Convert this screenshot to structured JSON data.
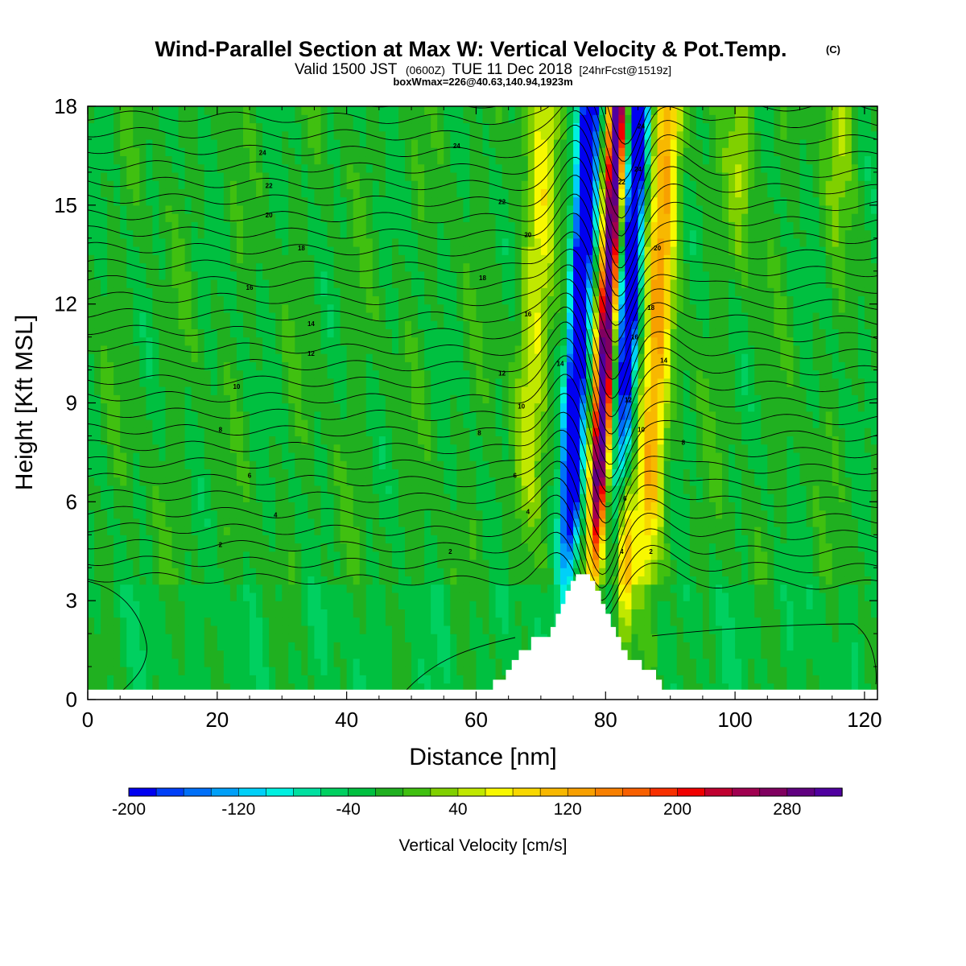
{
  "chart_data": {
    "type": "heatmap",
    "title": "Wind-Parallel Section at Max W: Vertical Velocity & Pot.Temp.",
    "title_tag": "(C)",
    "subtitle_main": "Valid 1500 JST",
    "subtitle_utc": "(0600Z)",
    "subtitle_date": "TUE 11 Dec 2018",
    "subtitle_fcst": "[24hrFcst@1519z]",
    "subtitle_box": "boxWmax=226@40.63,140.94,1923m",
    "xlabel": "Distance [nm]",
    "ylabel": "Height [Kft MSL]",
    "xlim": [
      0,
      122
    ],
    "ylim": [
      0,
      18
    ],
    "xticks": [
      "0",
      "20",
      "40",
      "60",
      "80",
      "100",
      "120"
    ],
    "yticks": [
      "0",
      "3",
      "6",
      "9",
      "12",
      "15",
      "18"
    ],
    "colorbar": {
      "label": "Vertical Velocity [cm/s]",
      "min": -200,
      "max": 340,
      "step": 20,
      "tick_labels": [
        "-200",
        "-120",
        "-40",
        "40",
        "120",
        "200",
        "280"
      ],
      "tick_values": [
        -200,
        -120,
        -40,
        40,
        120,
        200,
        280
      ],
      "colors": [
        "#0000f0",
        "#0040f8",
        "#0070f8",
        "#00a0f8",
        "#00d0f8",
        "#00f0e0",
        "#00e0a0",
        "#00d060",
        "#00c040",
        "#20b020",
        "#40c010",
        "#80d000",
        "#c0e800",
        "#f8f800",
        "#f8d800",
        "#f8b800",
        "#f8a000",
        "#f88000",
        "#f86000",
        "#f83000",
        "#f00000",
        "#c00030",
        "#a00050",
        "#800060",
        "#600080",
        "#5000a0"
      ]
    },
    "theta_contour_labels": [
      {
        "text": "24",
        "x": 27.0,
        "y": 16.6
      },
      {
        "text": "22",
        "x": 28.0,
        "y": 15.6
      },
      {
        "text": "20",
        "x": 28.0,
        "y": 14.7
      },
      {
        "text": "18",
        "x": 33.0,
        "y": 13.7
      },
      {
        "text": "16",
        "x": 25.0,
        "y": 12.5
      },
      {
        "text": "14",
        "x": 34.5,
        "y": 11.4
      },
      {
        "text": "12",
        "x": 34.5,
        "y": 10.5
      },
      {
        "text": "10",
        "x": 23.0,
        "y": 9.5
      },
      {
        "text": "8",
        "x": 20.5,
        "y": 8.2
      },
      {
        "text": "6",
        "x": 25.0,
        "y": 6.8
      },
      {
        "text": "4",
        "x": 29.0,
        "y": 5.6
      },
      {
        "text": "2",
        "x": 20.5,
        "y": 4.7
      },
      {
        "text": "24",
        "x": 57.0,
        "y": 16.8
      },
      {
        "text": "22",
        "x": 64.0,
        "y": 15.1
      },
      {
        "text": "20",
        "x": 68.0,
        "y": 14.1
      },
      {
        "text": "18",
        "x": 61.0,
        "y": 12.8
      },
      {
        "text": "16",
        "x": 68.0,
        "y": 11.7
      },
      {
        "text": "14",
        "x": 73.0,
        "y": 10.2
      },
      {
        "text": "12",
        "x": 64.0,
        "y": 9.9
      },
      {
        "text": "10",
        "x": 67.0,
        "y": 8.9
      },
      {
        "text": "8",
        "x": 60.5,
        "y": 8.1
      },
      {
        "text": "6",
        "x": 66.0,
        "y": 6.8
      },
      {
        "text": "4",
        "x": 68.0,
        "y": 5.7
      },
      {
        "text": "2",
        "x": 56.0,
        "y": 4.5
      },
      {
        "text": "24",
        "x": 85.5,
        "y": 17.4
      },
      {
        "text": "24",
        "x": 85.0,
        "y": 16.1
      },
      {
        "text": "22",
        "x": 82.5,
        "y": 15.7
      },
      {
        "text": "20",
        "x": 88.0,
        "y": 13.7
      },
      {
        "text": "18",
        "x": 87.0,
        "y": 11.9
      },
      {
        "text": "16",
        "x": 84.5,
        "y": 11.0
      },
      {
        "text": "14",
        "x": 89.0,
        "y": 10.3
      },
      {
        "text": "12",
        "x": 83.5,
        "y": 9.1
      },
      {
        "text": "10",
        "x": 85.5,
        "y": 8.2
      },
      {
        "text": "8",
        "x": 92.0,
        "y": 7.8
      },
      {
        "text": "6",
        "x": 83.0,
        "y": 6.1
      },
      {
        "text": "4",
        "x": 82.5,
        "y": 4.5
      },
      {
        "text": "2",
        "x": 87.0,
        "y": 4.5
      }
    ],
    "terrain_steps": [
      {
        "x": 0,
        "h": 0.3
      },
      {
        "x": 62.6,
        "h": 0.6
      },
      {
        "x": 64.6,
        "h": 0.9
      },
      {
        "x": 65.5,
        "h": 1.2
      },
      {
        "x": 66.6,
        "h": 1.5
      },
      {
        "x": 68.5,
        "h": 1.9
      },
      {
        "x": 71.5,
        "h": 2.2
      },
      {
        "x": 72.3,
        "h": 2.6
      },
      {
        "x": 73.1,
        "h": 2.9
      },
      {
        "x": 73.8,
        "h": 3.3
      },
      {
        "x": 74.6,
        "h": 3.6
      },
      {
        "x": 75.4,
        "h": 3.8
      },
      {
        "x": 77.6,
        "h": 3.6
      },
      {
        "x": 78.4,
        "h": 3.3
      },
      {
        "x": 79.3,
        "h": 2.9
      },
      {
        "x": 80.0,
        "h": 2.6
      },
      {
        "x": 80.8,
        "h": 2.2
      },
      {
        "x": 81.6,
        "h": 1.9
      },
      {
        "x": 82.4,
        "h": 1.5
      },
      {
        "x": 83.4,
        "h": 1.2
      },
      {
        "x": 85.6,
        "h": 0.9
      },
      {
        "x": 87.8,
        "h": 0.6
      },
      {
        "x": 88.7,
        "h": 0.3
      },
      {
        "x": 122,
        "h": 0.3
      }
    ]
  }
}
